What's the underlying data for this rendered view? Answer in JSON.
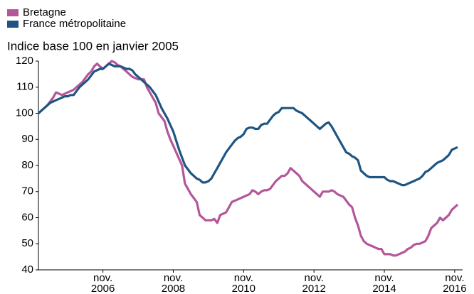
{
  "chart_data": {
    "type": "line",
    "subtitle": "Indice base 100 en janvier 2005",
    "categories": [
      null,
      null,
      null,
      null,
      null,
      null,
      null,
      null,
      null,
      null,
      null,
      null,
      null,
      null,
      null,
      null,
      null,
      null,
      null,
      null,
      null,
      null,
      "nov. 2006",
      null,
      null,
      null,
      null,
      null,
      null,
      null,
      null,
      null,
      null,
      null,
      null,
      null,
      null,
      null,
      null,
      null,
      null,
      null,
      null,
      null,
      null,
      null,
      "nov. 2008",
      null,
      null,
      null,
      null,
      null,
      null,
      null,
      null,
      null,
      null,
      null,
      null,
      null,
      null,
      null,
      null,
      null,
      null,
      null,
      null,
      null,
      null,
      null,
      "nov. 2010",
      null,
      null,
      null,
      null,
      null,
      null,
      null,
      null,
      null,
      null,
      null,
      null,
      null,
      null,
      null,
      null,
      null,
      null,
      null,
      null,
      null,
      null,
      null,
      "nov. 2012",
      null,
      null,
      null,
      null,
      null,
      null,
      null,
      null,
      null,
      null,
      null,
      null,
      null,
      null,
      null,
      null,
      null,
      null,
      null,
      null,
      null,
      null,
      null,
      "nov. 2014",
      null,
      null,
      null,
      null,
      null,
      null,
      null,
      null,
      null,
      null,
      null,
      null,
      null,
      null,
      null,
      null,
      null,
      null,
      null,
      null,
      null,
      null,
      null,
      "nov. 2016",
      null
    ],
    "series": [
      {
        "name": "Bretagne",
        "color": "#b4569a",
        "values": [
          100,
          101,
          102,
          103,
          104.5,
          106,
          108,
          107.5,
          107,
          107.5,
          108,
          108.5,
          109,
          110,
          111,
          112,
          113.5,
          115,
          116,
          118,
          119,
          118,
          117,
          118,
          119,
          120,
          119.5,
          118.5,
          118,
          117,
          116,
          115,
          114,
          113.5,
          113,
          113,
          113,
          110,
          108,
          106,
          104,
          100,
          98.5,
          97,
          93,
          90,
          87.5,
          85,
          82.5,
          80,
          73,
          71,
          69,
          67.5,
          66,
          61,
          60,
          59,
          59,
          59,
          59.5,
          58,
          61,
          61.5,
          62,
          64,
          66,
          66.5,
          67,
          67.5,
          68,
          68.5,
          69,
          70.5,
          70,
          69,
          70,
          70.5,
          70.5,
          71,
          72.5,
          74,
          75,
          76,
          76,
          77,
          79,
          78,
          77,
          76,
          74,
          73,
          72,
          71,
          70,
          69,
          68,
          70,
          70,
          70,
          70.5,
          70,
          69,
          68.5,
          68,
          66.5,
          65,
          64,
          60,
          57,
          53,
          51,
          50,
          49.5,
          49,
          48.5,
          48,
          48,
          46,
          46,
          46,
          45.5,
          45.5,
          46,
          46.5,
          47,
          48,
          48.5,
          49.5,
          50,
          50,
          50.5,
          51,
          53,
          56,
          57,
          58,
          60,
          59,
          60,
          61,
          63,
          64,
          65
        ]
      },
      {
        "name": "France métropolitaine",
        "color": "#1f5582",
        "values": [
          100,
          101,
          102,
          103,
          104,
          104.5,
          105,
          105.5,
          106,
          106.5,
          106.5,
          107,
          107,
          108.5,
          110,
          111,
          112,
          113,
          114.5,
          116,
          116.5,
          117,
          117,
          118,
          119,
          118.5,
          118,
          118,
          118,
          117.5,
          117,
          117,
          116.5,
          115,
          114,
          113,
          112,
          111,
          110,
          108.5,
          107,
          104.5,
          102,
          100,
          98,
          95.5,
          93,
          89.5,
          86,
          83,
          80,
          78.5,
          77,
          76,
          75,
          74.5,
          73.5,
          73.5,
          74,
          75,
          77,
          79,
          81,
          83,
          85,
          86.5,
          88,
          89.5,
          90.5,
          91,
          92,
          94,
          94.5,
          94.5,
          94,
          94,
          95.5,
          96,
          96,
          97.5,
          99,
          100,
          100.5,
          102,
          102,
          102,
          102,
          102,
          101,
          100.5,
          100,
          99,
          98,
          97,
          96,
          95,
          94,
          95,
          96,
          96.5,
          95,
          93,
          91,
          89,
          87,
          85,
          84.5,
          83.5,
          83,
          82,
          78,
          77,
          76,
          75.5,
          75.5,
          75.5,
          75.5,
          75.5,
          75.5,
          74.5,
          74,
          74,
          73.5,
          73,
          72.5,
          72.5,
          73,
          73.5,
          74,
          74.5,
          75,
          76,
          77.5,
          78,
          79,
          80,
          81,
          81.5,
          82,
          83,
          84,
          86,
          86.5,
          87
        ]
      }
    ],
    "ylim": [
      40,
      120
    ],
    "yticks": [
      40,
      50,
      60,
      70,
      80,
      90,
      100,
      110,
      120
    ],
    "grid": false,
    "legend": "top-left"
  }
}
